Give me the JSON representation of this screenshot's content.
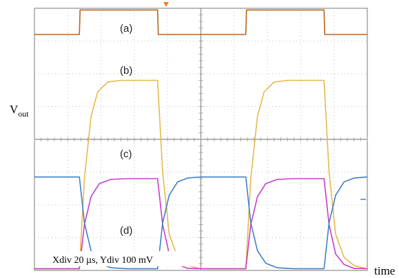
{
  "chart_data": {
    "type": "line",
    "ylabel_main": "V",
    "ylabel_sub": "out",
    "xlabel": "time",
    "annotation": "Xdiv 20 µs, Ydiv 100 mV",
    "grid": true,
    "x_unit": "div",
    "y_unit": "div",
    "xlim": [
      0,
      10
    ],
    "ylim": [
      0,
      8
    ],
    "series": [
      {
        "name": "(a)",
        "color": "#b5651d",
        "x": [
          0,
          1.35,
          1.37,
          3.7,
          3.72,
          6.35,
          6.37,
          8.7,
          8.72,
          10
        ],
        "y": [
          7.2,
          7.2,
          7.95,
          7.95,
          7.2,
          7.2,
          7.95,
          7.95,
          7.2,
          7.2
        ]
      },
      {
        "name": "(b)",
        "color": "#e6b84a",
        "x": [
          0,
          1.35,
          1.5,
          1.7,
          1.9,
          2.2,
          2.6,
          3.0,
          3.7,
          3.85,
          4.05,
          4.3,
          4.6,
          5.0,
          6.35,
          6.5,
          6.7,
          6.9,
          7.2,
          7.6,
          8.0,
          8.7,
          8.85,
          9.05,
          9.3,
          9.6,
          10
        ],
        "y": [
          0.05,
          0.05,
          2.8,
          4.7,
          5.45,
          5.75,
          5.8,
          5.8,
          5.8,
          3.0,
          1.1,
          0.4,
          0.15,
          0.05,
          0.05,
          2.8,
          4.7,
          5.45,
          5.75,
          5.8,
          5.8,
          5.8,
          3.0,
          1.1,
          0.4,
          0.15,
          0.05
        ]
      },
      {
        "name": "(c)",
        "color": "#c83cc8",
        "x": [
          0,
          1.35,
          1.5,
          1.7,
          1.95,
          2.3,
          2.8,
          3.7,
          3.85,
          4.05,
          4.3,
          4.6,
          5.0,
          6.35,
          6.5,
          6.7,
          6.95,
          7.3,
          7.8,
          8.7,
          8.85,
          9.05,
          9.3,
          9.6,
          10
        ],
        "y": [
          0.05,
          0.05,
          1.4,
          2.25,
          2.65,
          2.78,
          2.8,
          2.8,
          1.4,
          0.5,
          0.18,
          0.06,
          0.05,
          0.05,
          1.4,
          2.25,
          2.65,
          2.78,
          2.8,
          2.8,
          1.4,
          0.5,
          0.18,
          0.06,
          0.05
        ]
      },
      {
        "name": "(d)",
        "color": "#3f7fc8",
        "x": [
          0,
          1.35,
          1.5,
          1.7,
          1.95,
          2.3,
          2.8,
          3.7,
          3.85,
          4.05,
          4.3,
          4.6,
          5.0,
          6.35,
          6.5,
          6.7,
          6.95,
          7.3,
          7.8,
          8.7,
          8.85,
          9.05,
          9.3,
          9.6,
          10
        ],
        "y": [
          2.85,
          2.85,
          1.45,
          0.6,
          0.22,
          0.08,
          0.05,
          0.05,
          1.45,
          2.3,
          2.7,
          2.82,
          2.85,
          2.85,
          1.45,
          0.6,
          0.22,
          0.08,
          0.05,
          0.05,
          1.45,
          2.3,
          2.7,
          2.82,
          2.85
        ]
      }
    ],
    "series_labels": [
      "(a)",
      "(b)",
      "(c)",
      "(d)"
    ]
  }
}
